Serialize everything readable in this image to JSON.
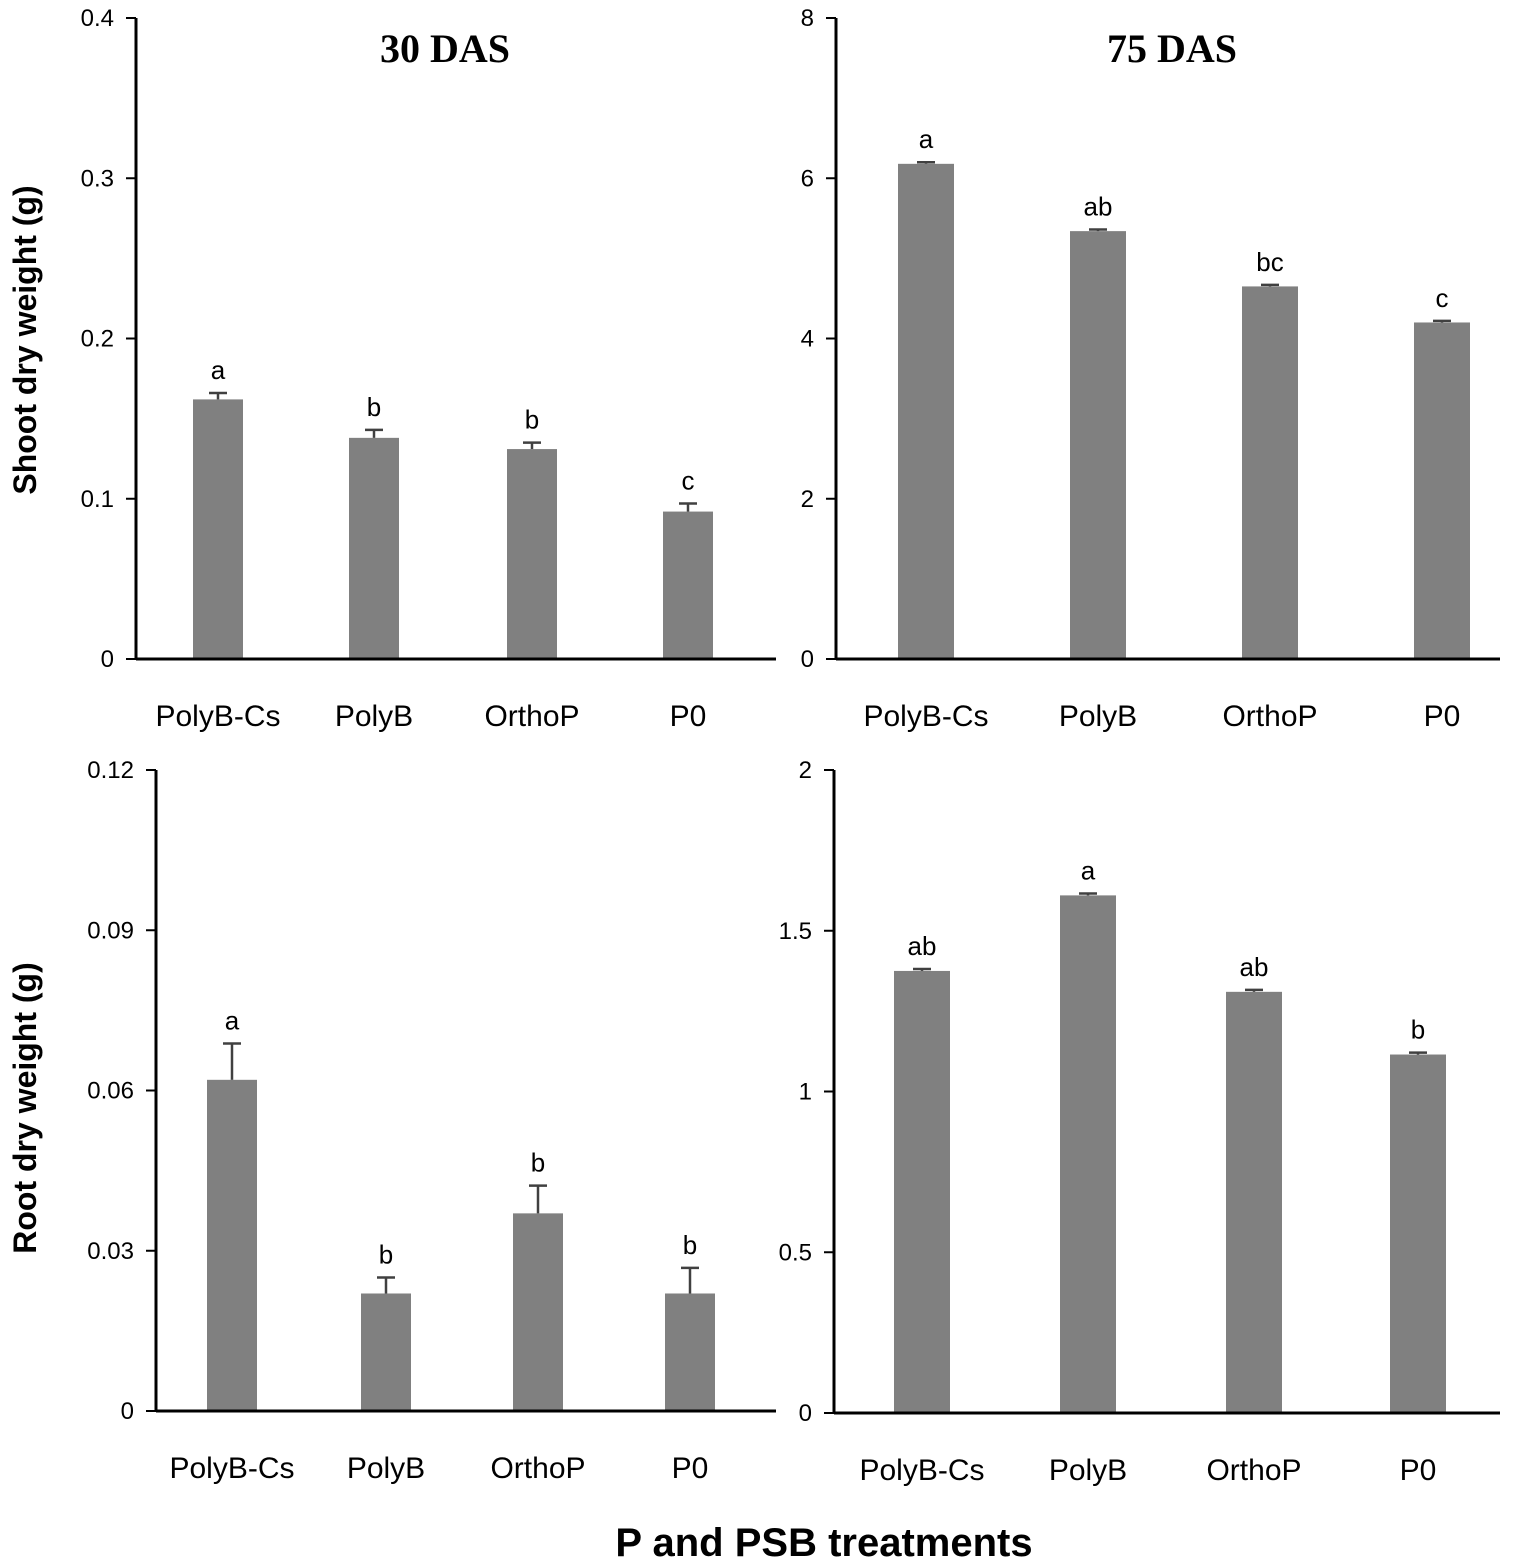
{
  "figure": {
    "xlabel": "P and PSB treatments",
    "bar_color": "#808080",
    "error_color": "#404040"
  },
  "chart_data": [
    {
      "type": "bar",
      "id": "shoot-30",
      "title": "30 DAS",
      "ylabel": "Shoot dry weight (g)",
      "categories": [
        "PolyB-Cs",
        "PolyB",
        "OrthoP",
        "P0"
      ],
      "values": [
        0.162,
        0.138,
        0.131,
        0.092
      ],
      "errors": [
        0.004,
        0.005,
        0.004,
        0.005
      ],
      "letters": [
        "a",
        "b",
        "b",
        "c"
      ],
      "ylim": [
        0,
        0.4
      ],
      "yticks": [
        0,
        0.1,
        0.2,
        0.3,
        0.4
      ],
      "ytick_labels": [
        "0",
        "0.1",
        "0.2",
        "0.3",
        "0.4"
      ]
    },
    {
      "type": "bar",
      "id": "shoot-75",
      "title": "75 DAS",
      "ylabel": "",
      "categories": [
        "PolyB-Cs",
        "PolyB",
        "OrthoP",
        "P0"
      ],
      "values": [
        6.18,
        5.34,
        4.65,
        4.2
      ],
      "errors": [
        0.02,
        0.02,
        0.02,
        0.02
      ],
      "letters": [
        "a",
        "ab",
        "bc",
        "c"
      ],
      "ylim": [
        0,
        8
      ],
      "yticks": [
        0,
        2,
        4,
        6,
        8
      ],
      "ytick_labels": [
        "0",
        "2",
        "4",
        "6",
        "8"
      ]
    },
    {
      "type": "bar",
      "id": "root-30",
      "title": "",
      "ylabel": "Root dry weight (g)",
      "categories": [
        "PolyB-Cs",
        "PolyB",
        "OrthoP",
        "P0"
      ],
      "values": [
        0.062,
        0.022,
        0.037,
        0.022
      ],
      "errors": [
        0.0068,
        0.003,
        0.0052,
        0.0048
      ],
      "letters": [
        "a",
        "b",
        "b",
        "b"
      ],
      "ylim": [
        0,
        0.12
      ],
      "yticks": [
        0,
        0.03,
        0.06,
        0.09,
        0.12
      ],
      "ytick_labels": [
        "0",
        "0.03",
        "0.06",
        "0.09",
        "0.12"
      ]
    },
    {
      "type": "bar",
      "id": "root-75",
      "title": "",
      "ylabel": "",
      "categories": [
        "PolyB-Cs",
        "PolyB",
        "OrthoP",
        "P0"
      ],
      "values": [
        1.375,
        1.61,
        1.31,
        1.115
      ],
      "errors": [
        0.006,
        0.006,
        0.006,
        0.006
      ],
      "letters": [
        "ab",
        "a",
        "ab",
        "b"
      ],
      "ylim": [
        0,
        2
      ],
      "yticks": [
        0,
        0.5,
        1,
        1.5,
        2
      ],
      "ytick_labels": [
        "0",
        "0.5",
        "1",
        "1.5",
        "2"
      ]
    }
  ]
}
